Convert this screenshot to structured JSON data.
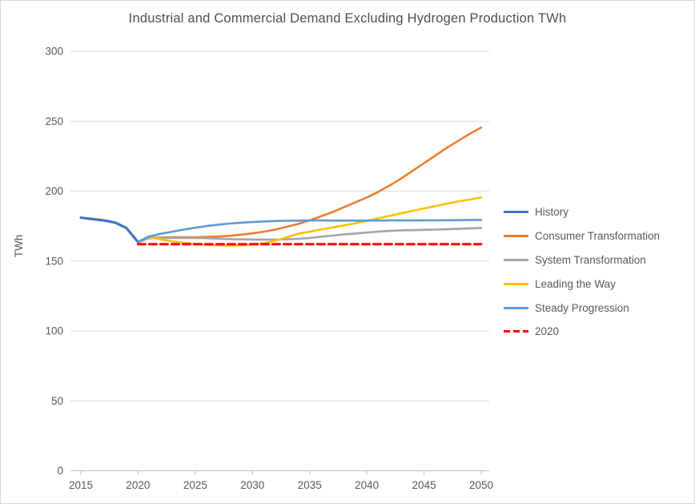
{
  "chart_data": {
    "type": "line",
    "title": "Industrial and Commercial Demand Excluding Hydrogen Production TWh",
    "ylabel": "TWh",
    "xlabel": "",
    "ylim": [
      0,
      300
    ],
    "xlim": [
      2015,
      2050
    ],
    "yticks": [
      0,
      50,
      100,
      150,
      200,
      250,
      300
    ],
    "xticks": [
      2015,
      2020,
      2025,
      2030,
      2035,
      2040,
      2045,
      2050
    ],
    "grid": "horizontal-only",
    "legend_position": "right",
    "colors": {
      "grid": "#d9d9d9",
      "axis": "#bfbfbf",
      "text": "#595959",
      "title": "#4f4f4f"
    },
    "series": [
      {
        "name": "History",
        "color": "#4472C4",
        "width": 3.2,
        "dash": null,
        "points": [
          [
            2015,
            181
          ],
          [
            2016,
            180
          ],
          [
            2017,
            179
          ],
          [
            2018,
            177.5
          ],
          [
            2019,
            173.5
          ],
          [
            2020,
            163.5
          ],
          [
            2021,
            167.5
          ]
        ]
      },
      {
        "name": "Consumer Transformation",
        "color": "#ED7D31",
        "width": 2.6,
        "dash": null,
        "points": [
          [
            2020,
            163.5
          ],
          [
            2021,
            166.5
          ],
          [
            2022,
            166.8
          ],
          [
            2023,
            167
          ],
          [
            2024,
            167
          ],
          [
            2025,
            167
          ],
          [
            2026,
            167.2
          ],
          [
            2027,
            167.5
          ],
          [
            2028,
            168
          ],
          [
            2029,
            168.8
          ],
          [
            2030,
            169.8
          ],
          [
            2031,
            171
          ],
          [
            2032,
            172.5
          ],
          [
            2033,
            174.5
          ],
          [
            2034,
            176.5
          ],
          [
            2035,
            179
          ],
          [
            2036,
            182
          ],
          [
            2037,
            185
          ],
          [
            2038,
            188.5
          ],
          [
            2039,
            192
          ],
          [
            2040,
            195.5
          ],
          [
            2041,
            199.5
          ],
          [
            2042,
            204
          ],
          [
            2043,
            209
          ],
          [
            2044,
            214.5
          ],
          [
            2045,
            220
          ],
          [
            2046,
            225.5
          ],
          [
            2047,
            231
          ],
          [
            2048,
            236
          ],
          [
            2049,
            241
          ],
          [
            2050,
            245.5
          ]
        ]
      },
      {
        "name": "System Transformation",
        "color": "#A5A5A5",
        "width": 2.6,
        "dash": null,
        "points": [
          [
            2020,
            163.5
          ],
          [
            2021,
            166.3
          ],
          [
            2022,
            166.5
          ],
          [
            2023,
            166.5
          ],
          [
            2024,
            166.5
          ],
          [
            2025,
            166.5
          ],
          [
            2026,
            166.3
          ],
          [
            2027,
            166
          ],
          [
            2028,
            165.7
          ],
          [
            2029,
            165.5
          ],
          [
            2030,
            165.4
          ],
          [
            2031,
            165.3
          ],
          [
            2032,
            165.3
          ],
          [
            2033,
            165.5
          ],
          [
            2034,
            165.9
          ],
          [
            2035,
            166.5
          ],
          [
            2036,
            167.4
          ],
          [
            2037,
            168.2
          ],
          [
            2038,
            169
          ],
          [
            2039,
            169.7
          ],
          [
            2040,
            170.4
          ],
          [
            2041,
            171
          ],
          [
            2042,
            171.5
          ],
          [
            2043,
            171.9
          ],
          [
            2044,
            172.1
          ],
          [
            2045,
            172.3
          ],
          [
            2046,
            172.5
          ],
          [
            2047,
            172.7
          ],
          [
            2048,
            173
          ],
          [
            2049,
            173.3
          ],
          [
            2050,
            173.7
          ]
        ]
      },
      {
        "name": "Leading the Way",
        "color": "#FFC000",
        "width": 2.6,
        "dash": null,
        "points": [
          [
            2020,
            163.5
          ],
          [
            2021,
            167
          ],
          [
            2022,
            165.5
          ],
          [
            2023,
            164
          ],
          [
            2024,
            163
          ],
          [
            2025,
            162.2
          ],
          [
            2026,
            161.6
          ],
          [
            2027,
            161.2
          ],
          [
            2028,
            161
          ],
          [
            2029,
            161.2
          ],
          [
            2030,
            161.7
          ],
          [
            2031,
            162.7
          ],
          [
            2032,
            164.5
          ],
          [
            2033,
            167
          ],
          [
            2034,
            169.5
          ],
          [
            2035,
            171
          ],
          [
            2036,
            172.5
          ],
          [
            2037,
            174
          ],
          [
            2038,
            175.5
          ],
          [
            2039,
            177
          ],
          [
            2040,
            178.7
          ],
          [
            2041,
            180.5
          ],
          [
            2042,
            182.3
          ],
          [
            2043,
            184.1
          ],
          [
            2044,
            185.9
          ],
          [
            2045,
            187.6
          ],
          [
            2046,
            189.3
          ],
          [
            2047,
            191
          ],
          [
            2048,
            192.6
          ],
          [
            2049,
            194
          ],
          [
            2050,
            195.5
          ]
        ]
      },
      {
        "name": "Steady Progression",
        "color": "#5B9BD5",
        "width": 2.6,
        "dash": null,
        "points": [
          [
            2020,
            163.5
          ],
          [
            2021,
            167.5
          ],
          [
            2022,
            169.5
          ],
          [
            2023,
            171
          ],
          [
            2024,
            172.5
          ],
          [
            2025,
            173.8
          ],
          [
            2026,
            175
          ],
          [
            2027,
            176
          ],
          [
            2028,
            176.8
          ],
          [
            2029,
            177.4
          ],
          [
            2030,
            177.9
          ],
          [
            2031,
            178.3
          ],
          [
            2032,
            178.6
          ],
          [
            2033,
            178.8
          ],
          [
            2034,
            178.9
          ],
          [
            2035,
            179
          ],
          [
            2036,
            179
          ],
          [
            2037,
            178.9
          ],
          [
            2038,
            178.9
          ],
          [
            2039,
            178.9
          ],
          [
            2040,
            178.9
          ],
          [
            2041,
            178.9
          ],
          [
            2042,
            179
          ],
          [
            2043,
            179
          ],
          [
            2044,
            179
          ],
          [
            2045,
            179.1
          ],
          [
            2046,
            179.1
          ],
          [
            2047,
            179.2
          ],
          [
            2048,
            179.2
          ],
          [
            2049,
            179.3
          ],
          [
            2050,
            179.4
          ]
        ]
      },
      {
        "name": "2020",
        "color": "#FF0000",
        "width": 3,
        "dash": "9 5",
        "points": [
          [
            2020,
            162
          ],
          [
            2050,
            162
          ]
        ]
      }
    ]
  }
}
